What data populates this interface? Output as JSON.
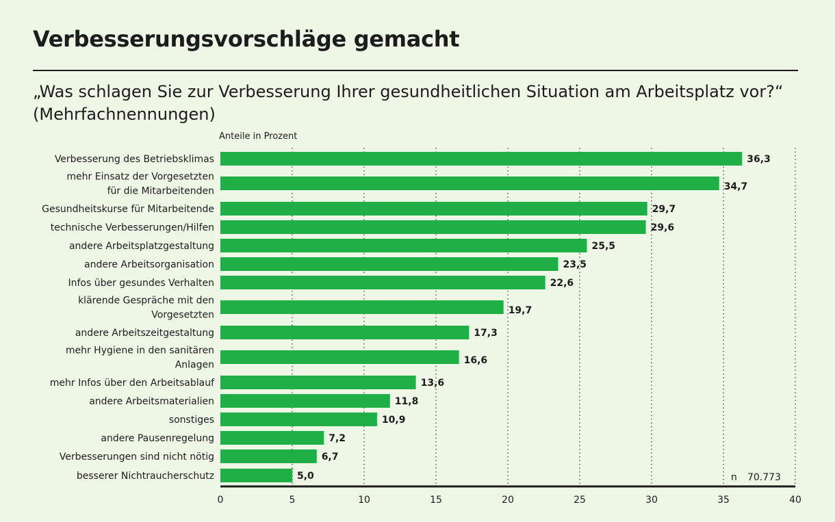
{
  "title": "Verbesserungsvorschläge gemacht",
  "subtitle": "„Was schlagen Sie zur Verbesserung Ihrer gesundheitlichen Situation am Arbeitsplatz vor?“ (Mehrfachnennungen)",
  "colors": {
    "background": "#eef7e6",
    "bar": "#1faf46",
    "text": "#1c1c1c"
  },
  "chart_data": {
    "type": "bar",
    "orientation": "horizontal",
    "unit_label": "Anteile in Prozent",
    "categories": [
      [
        "Verbesserung des Betriebsklimas"
      ],
      [
        "mehr Einsatz der Vorgesetzten",
        "für die Mitarbeitenden"
      ],
      [
        "Gesundheitskurse für Mitarbeitende"
      ],
      [
        "technische Verbesserungen/Hilfen"
      ],
      [
        "andere Arbeitsplatzgestaltung"
      ],
      [
        "andere Arbeitsorganisation"
      ],
      [
        "Infos über gesundes Verhalten"
      ],
      [
        "klärende Gespräche mit den",
        "Vorgesetzten"
      ],
      [
        "andere Arbeitszeitgestaltung"
      ],
      [
        "mehr Hygiene in den sanitären",
        "Anlagen"
      ],
      [
        "mehr Infos über den Arbeitsablauf"
      ],
      [
        "andere Arbeitsmaterialien"
      ],
      [
        "sonstiges"
      ],
      [
        "andere Pausenregelung"
      ],
      [
        "Verbesserungen sind nicht nötig"
      ],
      [
        "besserer Nichtraucherschutz"
      ]
    ],
    "values": [
      36.3,
      34.7,
      29.7,
      29.6,
      25.5,
      23.5,
      22.6,
      19.7,
      17.3,
      16.6,
      13.6,
      11.8,
      10.9,
      7.2,
      6.7,
      5.0
    ],
    "value_labels": [
      "36,3",
      "34,7",
      "29,7",
      "29,6",
      "25,5",
      "23,5",
      "22,6",
      "19,7",
      "17,3",
      "16,6",
      "13,6",
      "11,8",
      "10,9",
      "7,2",
      "6,7",
      "5,0"
    ],
    "xlim": [
      0,
      40
    ],
    "xticks": [
      0,
      5,
      10,
      15,
      20,
      25,
      30,
      35,
      40
    ],
    "grid": "vertical dotted",
    "n_label": "n",
    "n_value": "70.773"
  }
}
